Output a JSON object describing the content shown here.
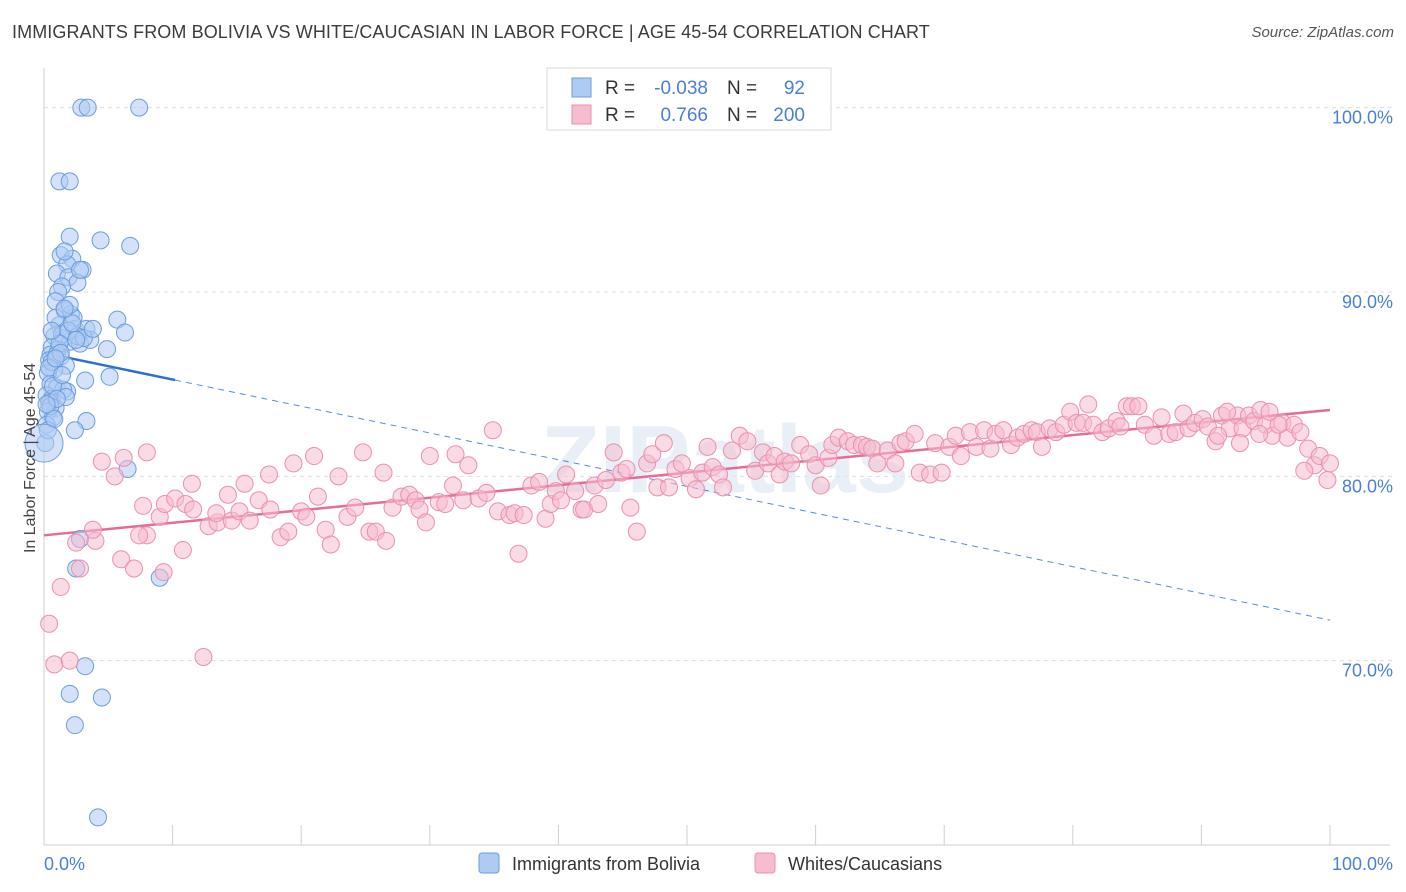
{
  "chart_data": {
    "type": "scatter",
    "title": "IMMIGRANTS FROM BOLIVIA VS WHITE/CAUCASIAN IN LABOR FORCE | AGE 45-54 CORRELATION CHART",
    "source": "Source: ZipAtlas.com",
    "ylabel": "In Labor Force | Age 45-54",
    "xlabel": "",
    "xlim": [
      0,
      100
    ],
    "ylim": [
      60,
      101.5
    ],
    "x_tick_labels": [
      "0.0%",
      "100.0%"
    ],
    "y_ticks": [
      {
        "value": 70,
        "label": "70.0%"
      },
      {
        "value": 80,
        "label": "80.0%"
      },
      {
        "value": 90,
        "label": "90.0%"
      },
      {
        "value": 100,
        "label": "100.0%"
      }
    ],
    "grid": true,
    "legend_position": "top-center",
    "watermark": "ZIPatlas",
    "colors": {
      "blue_fill": "#aecbf2",
      "blue_stroke": "#6a9de0",
      "blue_line": "#2e6fd1",
      "pink_fill": "#f6bccf",
      "pink_stroke": "#ec8fae",
      "pink_line": "#e66b97",
      "tick_label": "#4a7fd6"
    },
    "stats": [
      {
        "series": "Immigrants from Bolivia",
        "r_label": "R =",
        "r": "-0.038",
        "n_label": "N =",
        "n": "92"
      },
      {
        "series": "Whites/Caucasians",
        "r_label": "R =",
        "r": "0.766",
        "n_label": "N =",
        "n": "200"
      }
    ],
    "series": [
      {
        "name": "Immigrants from Bolivia",
        "color_key": "blue",
        "trend": {
          "x0": 0,
          "y0": 86.7,
          "x1": 100,
          "y1": 72.2,
          "solid_until_x": 10.2
        },
        "points": [
          [
            2.9,
            100
          ],
          [
            3.4,
            100
          ],
          [
            7.4,
            100
          ],
          [
            1.2,
            96
          ],
          [
            2.0,
            96
          ],
          [
            2.0,
            93
          ],
          [
            4.4,
            92.8
          ],
          [
            6.7,
            92.5
          ],
          [
            1.3,
            92
          ],
          [
            2.2,
            91.8
          ],
          [
            1.8,
            91.5
          ],
          [
            3.0,
            91.2
          ],
          [
            1.0,
            91
          ],
          [
            1.9,
            90.8
          ],
          [
            2.6,
            90.5
          ],
          [
            1.4,
            90.3
          ],
          [
            1.1,
            90
          ],
          [
            0.9,
            89.5
          ],
          [
            1.6,
            89
          ],
          [
            2.1,
            88.8
          ],
          [
            5.7,
            88.5
          ],
          [
            1.2,
            88.2
          ],
          [
            2.4,
            88
          ],
          [
            3.3,
            88
          ],
          [
            6.3,
            87.8
          ],
          [
            0.8,
            87.6
          ],
          [
            1.5,
            87.5
          ],
          [
            2.0,
            87.3
          ],
          [
            2.8,
            87.2
          ],
          [
            0.6,
            87
          ],
          [
            1.1,
            86.9
          ],
          [
            4.9,
            86.9
          ],
          [
            0.5,
            86.6
          ],
          [
            1.3,
            86.5
          ],
          [
            0.4,
            86.3
          ],
          [
            1.7,
            86
          ],
          [
            0.8,
            85.8
          ],
          [
            0.3,
            85.6
          ],
          [
            5.1,
            85.4
          ],
          [
            3.2,
            85.2
          ],
          [
            0.5,
            85
          ],
          [
            1.0,
            84.8
          ],
          [
            1.8,
            84.6
          ],
          [
            0.2,
            84.4
          ],
          [
            0.6,
            84.2
          ],
          [
            0.4,
            84
          ],
          [
            0.9,
            83.7
          ],
          [
            0.3,
            83.5
          ],
          [
            0.7,
            83.2
          ],
          [
            3.3,
            83
          ],
          [
            0.2,
            82.8
          ],
          [
            2.4,
            82.5
          ],
          [
            0.1,
            81.8
          ],
          [
            6.5,
            80.4
          ],
          [
            2.8,
            76.6
          ],
          [
            2.5,
            75
          ],
          [
            9.0,
            74.5
          ],
          [
            3.2,
            69.7
          ],
          [
            2.0,
            68.2
          ],
          [
            4.5,
            68
          ],
          [
            2.4,
            66.5
          ],
          [
            4.2,
            61.5
          ],
          [
            1.6,
            92.2
          ],
          [
            2.8,
            91.2
          ],
          [
            0.9,
            88.6
          ],
          [
            1.4,
            87.7
          ],
          [
            2.3,
            88.6
          ],
          [
            3.6,
            87.4
          ],
          [
            0.6,
            86.2
          ],
          [
            1.0,
            86.6
          ],
          [
            1.5,
            84.7
          ],
          [
            0.5,
            83.8
          ],
          [
            1.9,
            87.9
          ],
          [
            2.6,
            87.6
          ],
          [
            0.3,
            82.5
          ],
          [
            0.7,
            84.9
          ],
          [
            1.2,
            87.2
          ],
          [
            2.0,
            89.3
          ],
          [
            0.4,
            85.9
          ],
          [
            1.7,
            84.3
          ],
          [
            3.1,
            87.5
          ],
          [
            0.8,
            83.1
          ],
          [
            2.2,
            88.3
          ],
          [
            1.3,
            86.7
          ],
          [
            0.6,
            87.9
          ],
          [
            1.0,
            84.2
          ],
          [
            2.5,
            87.4
          ],
          [
            0.2,
            83.9
          ],
          [
            1.6,
            89.1
          ],
          [
            3.8,
            88
          ],
          [
            0.9,
            86.4
          ],
          [
            1.4,
            85.5
          ]
        ]
      },
      {
        "name": "Whites/Caucasians",
        "color_key": "pink",
        "trend": {
          "x0": 0,
          "y0": 76.8,
          "x1": 100,
          "y1": 83.6
        },
        "points": [
          [
            0.4,
            72
          ],
          [
            0.8,
            69.8
          ],
          [
            2.0,
            70
          ],
          [
            12.4,
            70.2
          ],
          [
            1.3,
            74
          ],
          [
            2.8,
            75
          ],
          [
            6.0,
            75.5
          ],
          [
            7.0,
            75
          ],
          [
            9.3,
            74.8
          ],
          [
            2.5,
            76.4
          ],
          [
            4.0,
            76.5
          ],
          [
            3.8,
            77.1
          ],
          [
            8.0,
            76.8
          ],
          [
            10.8,
            76
          ],
          [
            7.4,
            76.8
          ],
          [
            5.5,
            80
          ],
          [
            4.5,
            80.8
          ],
          [
            6.2,
            81
          ],
          [
            8.0,
            81.3
          ],
          [
            9.0,
            77.8
          ],
          [
            7.7,
            78.4
          ],
          [
            9.4,
            78.5
          ],
          [
            10.2,
            78.8
          ],
          [
            11.0,
            78.5
          ],
          [
            11.6,
            78.2
          ],
          [
            11.5,
            79.6
          ],
          [
            12.8,
            77.3
          ],
          [
            13.5,
            77.5
          ],
          [
            13.4,
            78
          ],
          [
            14.3,
            79
          ],
          [
            14.6,
            77.6
          ],
          [
            15.2,
            78.1
          ],
          [
            15.6,
            79.6
          ],
          [
            16.0,
            77.6
          ],
          [
            16.7,
            78.7
          ],
          [
            17.5,
            80.1
          ],
          [
            17.6,
            78.2
          ],
          [
            18.4,
            76.7
          ],
          [
            19.0,
            77
          ],
          [
            19.4,
            80.7
          ],
          [
            20.0,
            78.1
          ],
          [
            20.4,
            77.8
          ],
          [
            21.0,
            81.1
          ],
          [
            21.3,
            78.9
          ],
          [
            21.9,
            77.1
          ],
          [
            22.3,
            76.3
          ],
          [
            22.9,
            80
          ],
          [
            23.6,
            77.8
          ],
          [
            24.2,
            78.3
          ],
          [
            24.8,
            81.3
          ],
          [
            25.3,
            77
          ],
          [
            25.8,
            77
          ],
          [
            26.4,
            80.2
          ],
          [
            26.6,
            76.5
          ],
          [
            27.1,
            78.3
          ],
          [
            27.8,
            78.9
          ],
          [
            28.4,
            79
          ],
          [
            28.9,
            78.7
          ],
          [
            29.2,
            78.2
          ],
          [
            29.7,
            77.5
          ],
          [
            30.0,
            81.1
          ],
          [
            30.7,
            78.6
          ],
          [
            31.2,
            78.5
          ],
          [
            31.8,
            79.5
          ],
          [
            32.0,
            81.2
          ],
          [
            32.6,
            78.7
          ],
          [
            33.0,
            80.6
          ],
          [
            33.8,
            78.8
          ],
          [
            34.4,
            79.1
          ],
          [
            34.9,
            82.5
          ],
          [
            35.3,
            78.1
          ],
          [
            36.2,
            77.9
          ],
          [
            36.6,
            78
          ],
          [
            36.9,
            75.8
          ],
          [
            37.3,
            77.9
          ],
          [
            37.9,
            79.5
          ],
          [
            38.5,
            79.7
          ],
          [
            39.0,
            77.7
          ],
          [
            39.4,
            78.5
          ],
          [
            39.8,
            79.2
          ],
          [
            40.2,
            78.7
          ],
          [
            40.6,
            80.1
          ],
          [
            41.3,
            79.2
          ],
          [
            41.8,
            78.2
          ],
          [
            42.0,
            78.2
          ],
          [
            42.8,
            79.5
          ],
          [
            43.1,
            78.5
          ],
          [
            43.7,
            79.8
          ],
          [
            44.3,
            81.3
          ],
          [
            44.9,
            80.2
          ],
          [
            45.3,
            80.4
          ],
          [
            45.6,
            78.3
          ],
          [
            46.1,
            77
          ],
          [
            46.9,
            80.7
          ],
          [
            47.3,
            81.2
          ],
          [
            47.7,
            79.4
          ],
          [
            48.2,
            81.8
          ],
          [
            48.6,
            79.4
          ],
          [
            49.1,
            80.4
          ],
          [
            49.6,
            80.7
          ],
          [
            50.2,
            79.9
          ],
          [
            50.7,
            79.3
          ],
          [
            51.2,
            80.2
          ],
          [
            51.6,
            81.6
          ],
          [
            52.0,
            80.5
          ],
          [
            52.5,
            80.1
          ],
          [
            52.8,
            79.4
          ],
          [
            53.5,
            81.4
          ],
          [
            54.1,
            82.2
          ],
          [
            54.7,
            81.9
          ],
          [
            55.3,
            80.3
          ],
          [
            55.9,
            81.3
          ],
          [
            56.3,
            80.7
          ],
          [
            56.8,
            81.1
          ],
          [
            57.2,
            80.1
          ],
          [
            57.6,
            80.8
          ],
          [
            58.1,
            80.7
          ],
          [
            58.8,
            81.7
          ],
          [
            59.5,
            81.2
          ],
          [
            60.0,
            80.6
          ],
          [
            60.4,
            79.5
          ],
          [
            61.0,
            81
          ],
          [
            61.3,
            81.7
          ],
          [
            61.8,
            82.1
          ],
          [
            62.5,
            81.9
          ],
          [
            63.0,
            81.7
          ],
          [
            63.6,
            81.7
          ],
          [
            64.0,
            81.6
          ],
          [
            64.4,
            81.5
          ],
          [
            64.8,
            80.7
          ],
          [
            65.6,
            81.4
          ],
          [
            66.2,
            80.7
          ],
          [
            66.6,
            81.8
          ],
          [
            67.0,
            81.9
          ],
          [
            67.7,
            82.3
          ],
          [
            68.1,
            80.2
          ],
          [
            68.9,
            80.1
          ],
          [
            69.3,
            81.8
          ],
          [
            69.8,
            80.2
          ],
          [
            70.4,
            81.6
          ],
          [
            70.9,
            82.2
          ],
          [
            71.3,
            81.1
          ],
          [
            72.0,
            82.4
          ],
          [
            72.5,
            81.6
          ],
          [
            73.1,
            82.5
          ],
          [
            73.6,
            81.5
          ],
          [
            74.0,
            82.3
          ],
          [
            74.6,
            82.5
          ],
          [
            75.2,
            81.7
          ],
          [
            75.7,
            82.1
          ],
          [
            76.2,
            82.3
          ],
          [
            76.8,
            82.5
          ],
          [
            77.2,
            82.4
          ],
          [
            77.6,
            81.6
          ],
          [
            78.2,
            82.6
          ],
          [
            78.7,
            82.4
          ],
          [
            79.3,
            82.8
          ],
          [
            79.8,
            83.5
          ],
          [
            80.3,
            82.9
          ],
          [
            80.8,
            82.9
          ],
          [
            81.2,
            83.9
          ],
          [
            81.6,
            82.8
          ],
          [
            82.3,
            82.4
          ],
          [
            82.8,
            82.6
          ],
          [
            83.4,
            83
          ],
          [
            83.7,
            82.7
          ],
          [
            84.2,
            83.8
          ],
          [
            84.6,
            83.8
          ],
          [
            85.1,
            83.8
          ],
          [
            85.6,
            82.8
          ],
          [
            86.3,
            82.2
          ],
          [
            86.9,
            83.2
          ],
          [
            87.5,
            82.3
          ],
          [
            88.0,
            82.4
          ],
          [
            88.6,
            83.4
          ],
          [
            89.0,
            82.6
          ],
          [
            89.5,
            82.9
          ],
          [
            90.1,
            83.1
          ],
          [
            90.5,
            82.7
          ],
          [
            91.1,
            81.9
          ],
          [
            91.6,
            83.3
          ],
          [
            92.2,
            82.6
          ],
          [
            92.8,
            83.3
          ],
          [
            93.2,
            82.6
          ],
          [
            93.7,
            83.3
          ],
          [
            94.1,
            83
          ],
          [
            94.6,
            83.6
          ],
          [
            95.0,
            82.8
          ],
          [
            95.5,
            82.2
          ],
          [
            96.3,
            82.9
          ],
          [
            96.7,
            82.1
          ],
          [
            97.2,
            82.8
          ],
          [
            97.7,
            82.4
          ],
          [
            98.3,
            81.5
          ],
          [
            98.8,
            80.6
          ],
          [
            99.2,
            81.1
          ],
          [
            99.8,
            79.8
          ],
          [
            100.0,
            80.7
          ],
          [
            98.0,
            80.3
          ],
          [
            96.0,
            82.8
          ],
          [
            95.3,
            83.5
          ],
          [
            94.5,
            82.3
          ],
          [
            93.0,
            81.8
          ],
          [
            92.0,
            83.5
          ],
          [
            91.3,
            82.2
          ]
        ]
      }
    ]
  }
}
